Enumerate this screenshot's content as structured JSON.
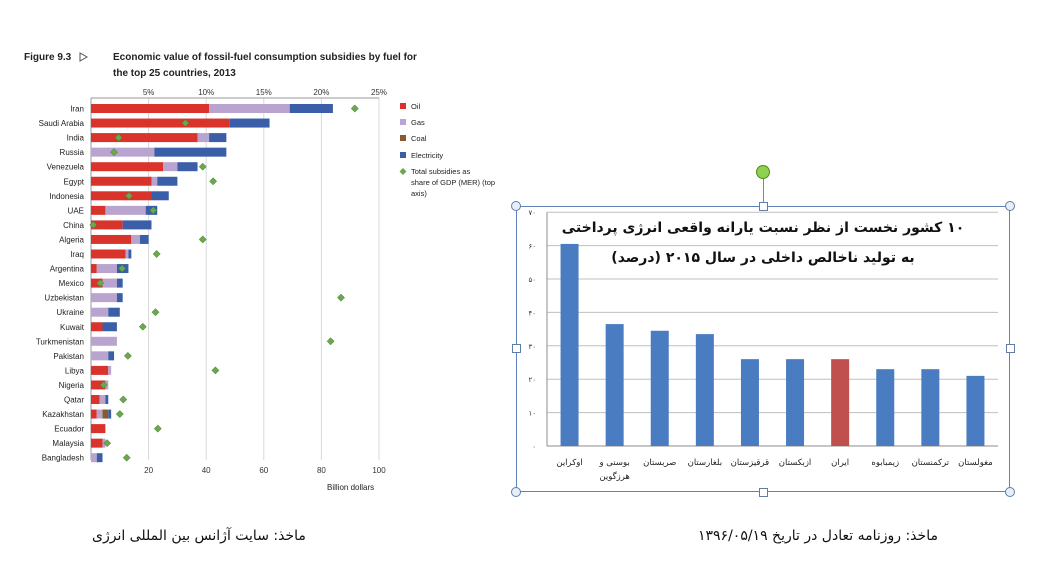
{
  "left": {
    "figure_label": "Figure 9.3",
    "title_line1": "Economic value of fossil-fuel consumption subsidies by fuel for",
    "title_line2": "the top 25 countries, 2013",
    "xlabel": "Billion dollars",
    "colors": {
      "oil": "#d9342b",
      "gas": "#b9a4cf",
      "coal": "#8a5a2c",
      "electricity": "#3a5ea8",
      "gdp": "#6aa84f"
    },
    "legend": [
      {
        "key": "oil",
        "label": "Oil"
      },
      {
        "key": "gas",
        "label": "Gas"
      },
      {
        "key": "coal",
        "label": "Coal"
      },
      {
        "key": "electricity",
        "label": "Electricity"
      },
      {
        "key": "gdp",
        "label": "Total subsidies as share of GDP (MER) (top axis)"
      }
    ]
  },
  "chart_data": [
    {
      "type": "bar",
      "orientation": "horizontal",
      "stacked": true,
      "title": "Economic value of fossil-fuel consumption subsidies by fuel for the top 25 countries, 2013",
      "xlabel": "Billion dollars",
      "xlim": [
        0,
        100
      ],
      "xticks": [
        20,
        40,
        60,
        80,
        100
      ],
      "top_axis": {
        "ticks": [
          "5%",
          "10%",
          "15%",
          "20%",
          "25%"
        ],
        "range": [
          0,
          25
        ]
      },
      "categories": [
        "Iran",
        "Saudi Arabia",
        "India",
        "Russia",
        "Venezuela",
        "Egypt",
        "Indonesia",
        "UAE",
        "China",
        "Algeria",
        "Iraq",
        "Argentina",
        "Mexico",
        "Uzbekistan",
        "Ukraine",
        "Kuwait",
        "Turkmenistan",
        "Pakistan",
        "Libya",
        "Nigeria",
        "Qatar",
        "Kazakhstan",
        "Ecuador",
        "Malaysia",
        "Bangladesh"
      ],
      "series": [
        {
          "name": "Oil",
          "values": [
            41,
            48,
            37,
            0,
            25,
            21,
            21,
            5,
            11,
            14,
            12,
            2,
            4,
            0,
            0,
            4,
            0,
            0,
            6,
            5,
            3,
            2,
            5,
            4,
            0
          ]
        },
        {
          "name": "Gas",
          "values": [
            28,
            0,
            4,
            22,
            5,
            2,
            0,
            14,
            0,
            3,
            1,
            7,
            5,
            9,
            6,
            0,
            9,
            6,
            1,
            1,
            2,
            2,
            0,
            1,
            2
          ]
        },
        {
          "name": "Coal",
          "values": [
            0,
            0,
            0,
            0,
            0,
            0,
            0,
            0,
            0,
            0,
            0,
            0,
            0,
            0,
            0,
            0,
            0,
            0,
            0,
            0,
            0,
            2,
            0,
            0,
            0
          ]
        },
        {
          "name": "Electricity",
          "values": [
            15,
            14,
            6,
            25,
            7,
            7,
            6,
            4,
            10,
            3,
            1,
            4,
            2,
            2,
            4,
            5,
            0,
            2,
            0,
            0,
            1,
            1,
            0,
            0,
            2
          ]
        }
      ],
      "gdp_share_percent": [
        22.9,
        8.2,
        2.4,
        2.0,
        9.7,
        10.6,
        3.3,
        5.4,
        0.2,
        9.7,
        5.7,
        2.7,
        0.8,
        21.7,
        5.6,
        4.5,
        20.8,
        3.2,
        10.8,
        1.1,
        2.8,
        2.5,
        5.8,
        1.4,
        3.1
      ]
    },
    {
      "type": "bar",
      "title": "۱۰ کشور نخست از نظر نسبت یارانه واقعی انرژی پرداختی به تولید ناخالص داخلی در سال ۲۰۱۵ (درصد)",
      "title_line1": "۱۰ کشور نخست از نظر نسبت یارانه واقعی انرژی پرداختی",
      "title_line2": "به تولید ناخالص داخلی در سال ۲۰۱۵ (درصد)",
      "categories": [
        "اوکراین",
        "بوسنی و هرزگوین",
        "صربستان",
        "بلغارستان",
        "قرقیزستان",
        "ازبکستان",
        "ایران",
        "زیمبابوه",
        "ترکمنستان",
        "مغولستان"
      ],
      "values": [
        60.5,
        36.5,
        34.5,
        33.5,
        26,
        26,
        26,
        23,
        23,
        21
      ],
      "ylim": [
        0,
        70
      ],
      "yticks": [
        "۰",
        "۱۰",
        "۲۰",
        "۳۰",
        "۴۰",
        "۵۰",
        "۶۰",
        "۷۰"
      ],
      "colors": {
        "default": "#4a7cc1",
        "highlight": "#c0504d"
      },
      "highlight": "ایران"
    }
  ],
  "captions": {
    "left": "ماخذ: سایت آژانس بین المللی انرژی",
    "right": "ماخذ: روزنامه تعادل در تاریخ ۱۳۹۶/۰۵/۱۹"
  }
}
